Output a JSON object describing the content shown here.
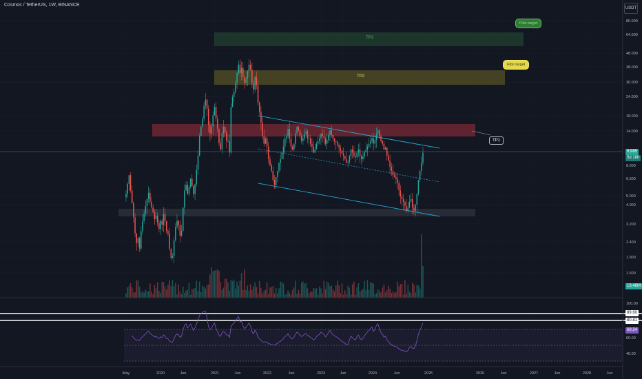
{
  "header": {
    "symbol": "Cosmos / TetherUS, 1W, BINANCE",
    "currency": "USDT"
  },
  "price_axis": [
    "80.000",
    "64.000",
    "48.000",
    "38.000",
    "30.000",
    "24.000",
    "18.000",
    "14.000",
    "11.000",
    "8.000",
    "6.500",
    "5.000",
    "4.000",
    "3.200",
    "2.400",
    "1.900",
    "1.500"
  ],
  "price_tags": {
    "last_price": "9.985",
    "countdown": "5d 18h",
    "volume": "13.48M"
  },
  "rsi_axis": [
    "100.00",
    "60.00",
    "40.00"
  ],
  "rsi_tags": {
    "upper": "89.60",
    "lower": "80.81",
    "value": "69.24"
  },
  "time_axis": [
    "May",
    "2020",
    "Jun",
    "2021",
    "Jun",
    "2022",
    "Jun",
    "2023",
    "Jun",
    "2024",
    "Jun",
    "2025",
    "2026",
    "Jun",
    "2027",
    "Jun",
    "2028",
    "Jun"
  ],
  "annotations": {
    "tp3": "TP3",
    "tp2": "TP2",
    "tp1": "TP1",
    "fibo_target_1": "Fibo target",
    "fibo_target_2": "Fibo target"
  },
  "colors": {
    "up": "#26a69a",
    "down": "#ef5350",
    "background": "#131722",
    "rsi": "#7e57c2",
    "channel": "#2aa7d8"
  },
  "chart_data": {
    "type": "candlestick",
    "scale": "log",
    "rsi_bands": [
      70,
      30
    ],
    "closes_weekly": [
      5.2,
      6.1,
      7.0,
      5.5,
      4.5,
      3.6,
      2.8,
      2.4,
      2.6,
      2.2,
      2.9,
      3.4,
      3.8,
      4.3,
      4.8,
      5.3,
      4.6,
      4.2,
      3.9,
      3.5,
      3.7,
      3.3,
      3.0,
      3.4,
      3.2,
      3.8,
      3.4,
      2.9,
      2.8,
      2.2,
      1.9,
      1.95,
      2.5,
      3.1,
      3.4,
      3.2,
      2.7,
      2.9,
      4.2,
      5.5,
      6.0,
      5.2,
      5.8,
      6.6,
      5.9,
      5.2,
      6.1,
      7.6,
      9.5,
      13.0,
      15.0,
      17.0,
      21.0,
      23.0,
      20.0,
      15.5,
      13.5,
      15.0,
      18.0,
      20.5,
      17.0,
      14.5,
      11.6,
      10.5,
      13.5,
      15.0,
      13.8,
      12.0,
      12.0,
      10.0,
      20.5,
      24.0,
      26.0,
      30.0,
      35.0,
      40.0,
      35.0,
      38.0,
      33.0,
      30.0,
      32.0,
      36.0,
      40.0,
      37.0,
      30.0,
      27.0,
      33.0,
      29.0,
      22.0,
      19.0,
      16.0,
      13.0,
      11.5,
      12.5,
      11.0,
      9.0,
      8.2,
      7.5,
      6.5,
      6.0,
      6.8,
      7.5,
      8.5,
      9.0,
      10.0,
      11.0,
      12.5,
      13.0,
      14.5,
      12.5,
      11.0,
      10.5,
      11.5,
      13.5,
      15.0,
      14.2,
      13.0,
      12.0,
      12.5,
      13.5,
      14.0,
      12.5,
      12.5,
      11.5,
      11.0,
      10.0,
      10.5,
      11.5,
      12.0,
      12.5,
      13.5,
      13.0,
      12.5,
      11.5,
      12.2,
      13.2,
      14.2,
      13.2,
      12.5,
      12.0,
      11.8,
      11.3,
      10.8,
      10.3,
      9.8,
      9.5,
      9.0,
      8.5,
      8.6,
      9.5,
      10.5,
      10.0,
      9.5,
      9.3,
      10.0,
      10.5,
      9.5,
      9.0,
      9.4,
      10.0,
      10.5,
      11.0,
      11.5,
      12.0,
      12.5,
      11.5,
      12.2,
      13.5,
      14.2,
      13.0,
      12.0,
      11.5,
      10.5,
      10.8,
      9.5,
      8.8,
      8.0,
      7.5,
      7.0,
      6.8,
      6.6,
      6.2,
      5.5,
      5.0,
      4.8,
      4.6,
      4.3,
      4.0,
      4.2,
      4.6,
      4.8,
      4.2,
      4.0,
      4.4,
      5.2,
      6.5,
      7.5,
      8.5,
      9.985
    ]
  }
}
